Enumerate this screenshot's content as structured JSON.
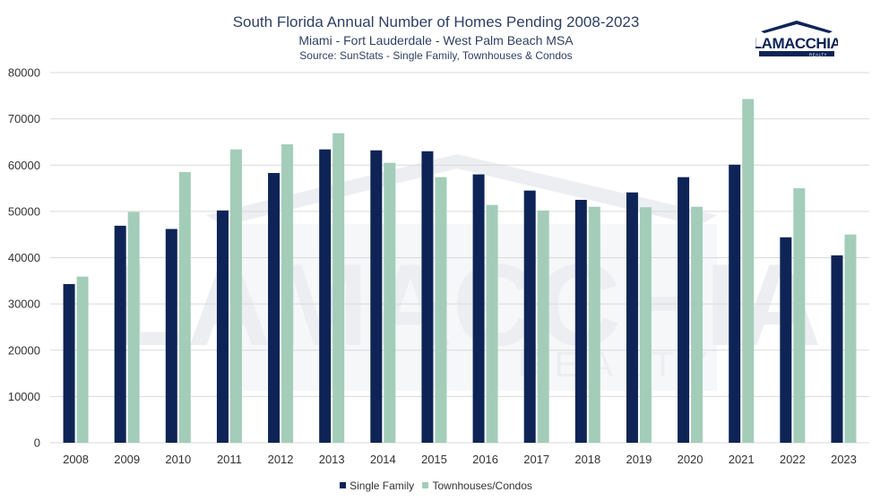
{
  "title": "South Florida Annual Number of Homes Pending 2008-2023",
  "subtitle": "Miami - Fort Lauderdale - West Palm Beach MSA",
  "source": "Source: SunStats - Single Family, Townhouses & Condos",
  "logo": {
    "name": "LAMACCHIA",
    "tag": "REALTY"
  },
  "watermark": {
    "name": "LAMACCHIA",
    "tag": "REALTY"
  },
  "colors": {
    "single_family": "#0e2456",
    "townhouses": "#a3cdb9",
    "grid": "#d9d9d9",
    "title": "#2f3f63"
  },
  "chart_data": {
    "type": "bar",
    "categories": [
      "2008",
      "2009",
      "2010",
      "2011",
      "2012",
      "2013",
      "2014",
      "2015",
      "2016",
      "2017",
      "2018",
      "2019",
      "2020",
      "2021",
      "2022",
      "2023"
    ],
    "series": [
      {
        "name": "Single Family",
        "values": [
          34300,
          46900,
          46200,
          50200,
          58300,
          63400,
          63200,
          63000,
          58000,
          54500,
          52500,
          54100,
          57400,
          60100,
          44400,
          40500
        ]
      },
      {
        "name": "Townhouses/Condos",
        "values": [
          35900,
          49900,
          58500,
          63400,
          64500,
          66900,
          60500,
          57400,
          51400,
          50200,
          51000,
          50900,
          51000,
          74300,
          55000,
          45000
        ]
      }
    ],
    "yticks": [
      "0",
      "10000",
      "20000",
      "30000",
      "40000",
      "50000",
      "60000",
      "70000",
      "80000"
    ],
    "ylim": [
      0,
      80000
    ],
    "grid": true,
    "legend": "bottom"
  }
}
